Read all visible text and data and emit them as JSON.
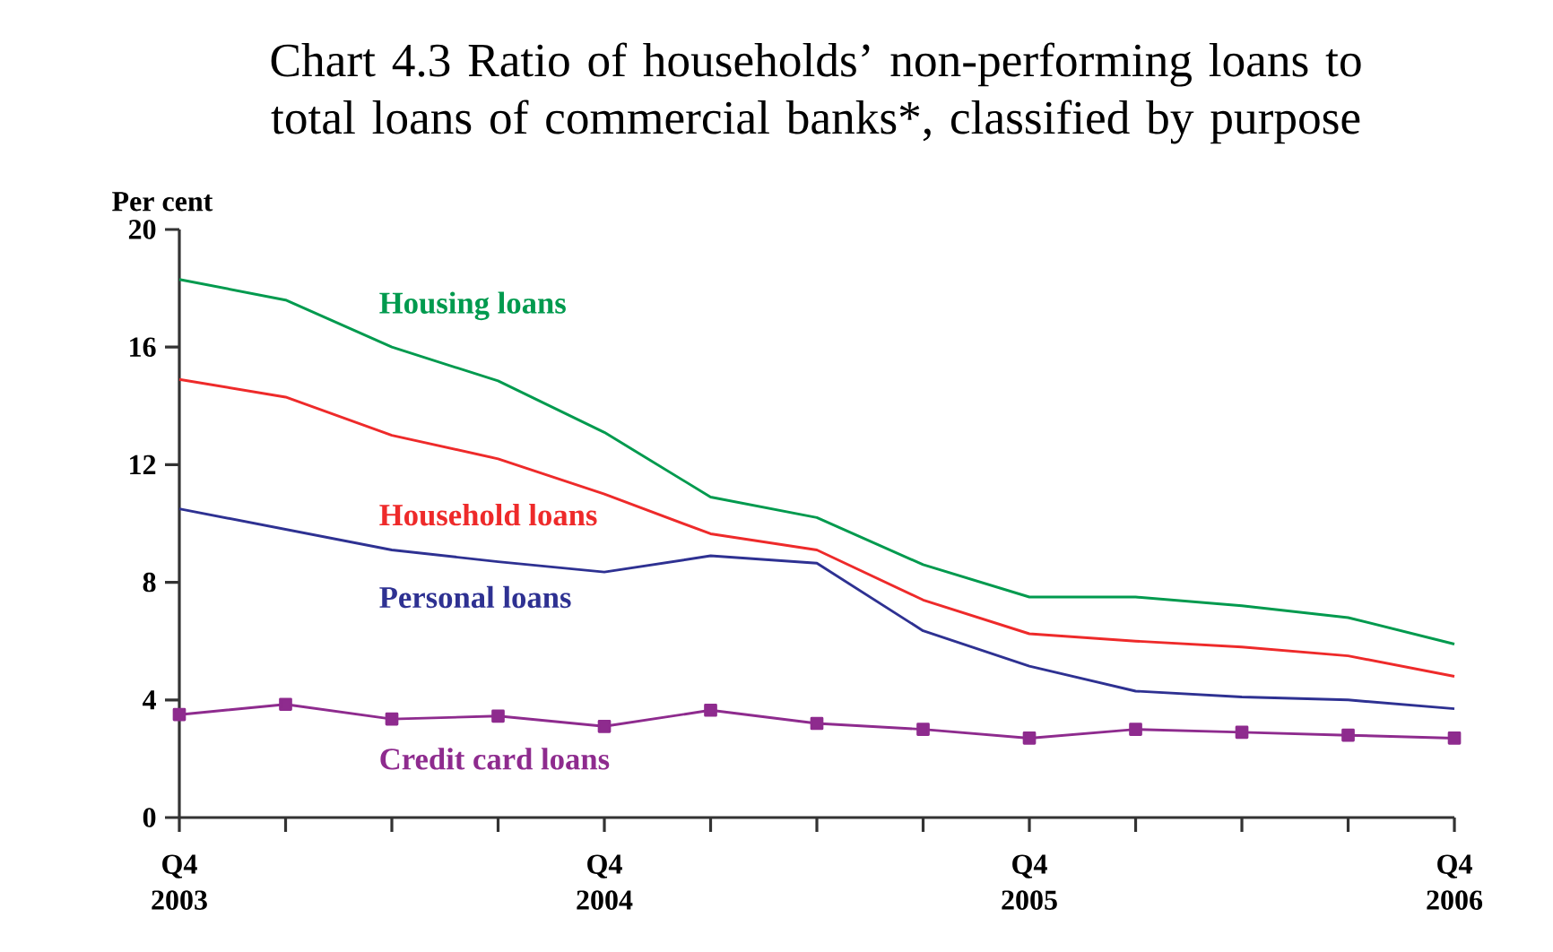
{
  "chart_data": {
    "type": "line",
    "title": "Chart 4.3  Ratio of households’ non-performing loans to total loans of commercial banks*, classified by purpose",
    "ylabel": "Per cent",
    "categories": [
      "Q4 2003",
      null,
      null,
      null,
      "Q4 2004",
      null,
      null,
      null,
      "Q4 2005",
      null,
      null,
      null,
      "Q4 2006"
    ],
    "ylim": [
      0,
      20
    ],
    "yticks": [
      0,
      4,
      8,
      12,
      16,
      20
    ],
    "legend": false,
    "grid": false,
    "series": [
      {
        "name": "Housing loans",
        "color": "#009a4e",
        "values": [
          18.3,
          17.6,
          16.0,
          14.85,
          13.1,
          10.9,
          10.2,
          8.6,
          7.5,
          7.5,
          7.2,
          6.8,
          5.9
        ]
      },
      {
        "name": "Household loans",
        "color": "#ee2a2a",
        "values": [
          14.9,
          14.3,
          13.0,
          12.2,
          11.0,
          9.65,
          9.1,
          7.4,
          6.25,
          6.0,
          5.8,
          5.5,
          4.8
        ]
      },
      {
        "name": "Personal loans",
        "color": "#2e3192",
        "values": [
          10.5,
          9.8,
          9.1,
          8.7,
          8.35,
          8.9,
          8.65,
          6.35,
          5.15,
          4.3,
          4.1,
          4.0,
          3.7
        ]
      },
      {
        "name": "Credit card loans",
        "color": "#8e2b8e",
        "marker": "square",
        "values": [
          3.5,
          3.85,
          3.35,
          3.45,
          3.1,
          3.65,
          3.2,
          3.0,
          2.7,
          3.0,
          2.9,
          2.8,
          2.7
        ]
      }
    ]
  }
}
